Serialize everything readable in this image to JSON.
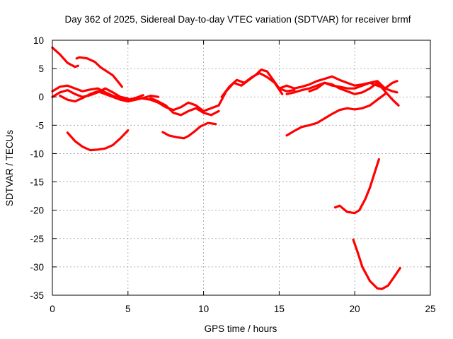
{
  "chart_data": {
    "type": "line",
    "title": "Day 362 of 2025, Sidereal Day-to-day VTEC variation (SDTVAR) for receiver brmf",
    "xlabel": "GPS time / hours",
    "ylabel": "SDTVAR / TECUs",
    "xlim": [
      0,
      25
    ],
    "ylim": [
      -35,
      10
    ],
    "xticks": [
      0,
      5,
      10,
      15,
      20,
      25
    ],
    "yticks": [
      -35,
      -30,
      -25,
      -20,
      -15,
      -10,
      -5,
      0,
      5,
      10
    ],
    "grid": true,
    "legend": "none",
    "color": "#ff0000",
    "series": [
      {
        "x": [
          0,
          0.5,
          1.0,
          1.5,
          1.7
        ],
        "y": [
          8.7,
          7.5,
          6.0,
          5.3,
          5.5
        ]
      },
      {
        "x": [
          1.6,
          1.8,
          2.3,
          2.8,
          3.2,
          3.6,
          4.0,
          4.4,
          4.6
        ],
        "y": [
          6.8,
          7.0,
          6.8,
          6.2,
          5.2,
          4.5,
          3.8,
          2.5,
          1.8
        ]
      },
      {
        "x": [
          0,
          0.5,
          1.0,
          1.5,
          2.0,
          2.5,
          3.0,
          3.5,
          4.0,
          4.5,
          5.0,
          5.5,
          6.0
        ],
        "y": [
          1.0,
          1.8,
          2.0,
          1.5,
          1.0,
          1.3,
          1.5,
          0.8,
          0.2,
          -0.2,
          -0.5,
          -0.2,
          0.3
        ]
      },
      {
        "x": [
          0,
          0.5,
          1.0,
          1.5,
          2.0,
          2.5,
          3.0,
          3.5,
          4.0,
          4.5,
          5.0
        ],
        "y": [
          0.0,
          0.8,
          1.2,
          0.5,
          0.0,
          0.3,
          0.8,
          1.5,
          0.8,
          0.0,
          -0.3
        ]
      },
      {
        "x": [
          0.5,
          1.0,
          1.5,
          2.0,
          2.5,
          3.0,
          3.5,
          4.0,
          4.5,
          5.0,
          5.5,
          6.0,
          6.5,
          7.0
        ],
        "y": [
          0.2,
          -0.5,
          -0.8,
          -0.2,
          0.5,
          1.0,
          0.5,
          0.0,
          -0.5,
          -0.8,
          -0.5,
          -0.2,
          0.2,
          0.0
        ]
      },
      {
        "x": [
          1.0,
          1.5,
          2.0,
          2.5,
          3.0,
          3.5,
          4.0,
          4.5,
          5.0
        ],
        "y": [
          -6.3,
          -7.8,
          -8.8,
          -9.4,
          -9.3,
          -9.1,
          -8.5,
          -7.3,
          -5.9
        ]
      },
      {
        "x": [
          6.0,
          6.5,
          7.0,
          7.5,
          8.0,
          8.5,
          9.0,
          9.5,
          10.0,
          10.5,
          11.0
        ],
        "y": [
          -0.3,
          -0.5,
          -1.0,
          -1.8,
          -2.3,
          -1.8,
          -1.0,
          -1.5,
          -2.5,
          -2.0,
          -1.5
        ]
      },
      {
        "x": [
          6.5,
          7.0,
          7.5,
          8.0,
          8.5,
          9.0,
          9.5,
          10.0,
          10.5,
          11.0
        ],
        "y": [
          -0.2,
          -0.8,
          -1.5,
          -2.8,
          -3.2,
          -2.5,
          -2.0,
          -2.8,
          -3.2,
          -2.5
        ]
      },
      {
        "x": [
          7.3,
          7.7,
          8.2,
          8.7,
          9.0,
          9.4,
          9.8,
          10.3,
          10.8
        ],
        "y": [
          -6.2,
          -6.8,
          -7.1,
          -7.3,
          -6.9,
          -6.1,
          -5.2,
          -4.6,
          -4.8
        ]
      },
      {
        "x": [
          11.0,
          11.5,
          12.0,
          12.5,
          13.0,
          13.5,
          13.8,
          14.2,
          14.6,
          15.0,
          15.5,
          16.0
        ],
        "y": [
          -1.5,
          1.0,
          2.5,
          2.0,
          3.0,
          4.0,
          4.8,
          4.5,
          3.0,
          1.5,
          1.0,
          1.2
        ]
      },
      {
        "x": [
          11.2,
          11.7,
          12.2,
          12.7,
          13.2,
          13.7,
          14.2,
          14.7,
          15.2
        ],
        "y": [
          0.0,
          1.8,
          3.0,
          2.5,
          3.5,
          4.2,
          3.5,
          2.5,
          0.5
        ]
      },
      {
        "x": [
          15.0,
          15.5,
          16.0,
          16.5,
          17.0,
          17.5,
          18.0,
          18.5,
          19.0,
          19.5,
          20.0,
          20.5,
          21.0,
          21.5,
          22.0,
          22.5,
          22.8
        ],
        "y": [
          1.5,
          2.0,
          1.5,
          1.8,
          2.2,
          2.8,
          3.2,
          3.6,
          3.0,
          2.5,
          2.0,
          2.2,
          2.5,
          2.8,
          1.5,
          1.0,
          0.8
        ]
      },
      {
        "x": [
          15.5,
          16.0,
          16.5,
          17.0,
          17.5,
          18.0,
          18.5,
          19.0,
          19.5,
          20.0,
          20.5,
          21.0,
          21.5,
          22.0,
          22.5,
          22.8
        ],
        "y": [
          0.5,
          0.8,
          1.2,
          1.5,
          2.0,
          2.5,
          2.0,
          1.8,
          1.5,
          1.5,
          2.0,
          2.5,
          2.0,
          1.5,
          2.5,
          2.8
        ]
      },
      {
        "x": [
          17.0,
          17.5,
          18.0,
          18.5,
          19.0,
          19.5,
          20.0,
          20.5,
          21.0,
          21.5,
          22.0,
          22.5,
          22.9
        ],
        "y": [
          1.0,
          1.5,
          2.5,
          2.2,
          1.5,
          1.0,
          0.5,
          0.8,
          1.5,
          2.5,
          1.0,
          -0.5,
          -1.5
        ]
      },
      {
        "x": [
          15.5,
          16.0,
          16.5,
          17.0,
          17.5,
          18.0,
          18.5,
          19.0,
          19.5,
          20.0,
          20.5,
          21.0,
          21.5,
          22.0
        ],
        "y": [
          -6.8,
          -6.0,
          -5.3,
          -5.0,
          -4.6,
          -3.8,
          -3.0,
          -2.3,
          -2.0,
          -2.2,
          -2.0,
          -1.5,
          -0.5,
          0.5
        ]
      },
      {
        "x": [
          18.7,
          19.0,
          19.5,
          20.0,
          20.3,
          20.7,
          21.0,
          21.3,
          21.6
        ],
        "y": [
          -19.5,
          -19.2,
          -20.3,
          -20.5,
          -20.0,
          -18.0,
          -16.0,
          -13.5,
          -11.0
        ]
      },
      {
        "x": [
          19.9,
          20.2,
          20.5,
          21.0,
          21.5,
          21.8,
          22.2,
          22.6,
          23.0
        ],
        "y": [
          -25.2,
          -27.5,
          -30.0,
          -32.5,
          -33.8,
          -33.9,
          -33.3,
          -31.8,
          -30.2
        ]
      }
    ]
  }
}
